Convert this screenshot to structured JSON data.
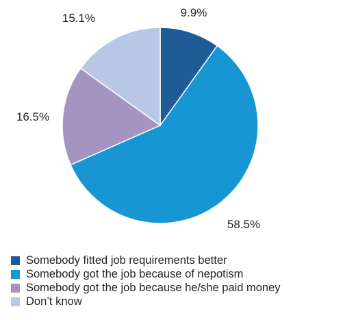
{
  "chart_data": {
    "type": "pie",
    "slices": [
      {
        "label": "Somebody fitted job requirements better",
        "value": 9.9,
        "value_label": "9.9%",
        "color": "#1f5b96"
      },
      {
        "label": "Somebody got the job because of nepotism",
        "value": 58.5,
        "value_label": "58.5%",
        "color": "#1896d3"
      },
      {
        "label": "Somebody got the job because he/she paid money",
        "value": 16.5,
        "value_label": "16.5%",
        "color": "#a593c2"
      },
      {
        "label": "Don’t know",
        "value": 15.1,
        "value_label": "15.1%",
        "color": "#b8c7e5"
      }
    ],
    "start_angle": "12 o'clock",
    "direction": "clockwise",
    "legend_position": "bottom-left"
  }
}
